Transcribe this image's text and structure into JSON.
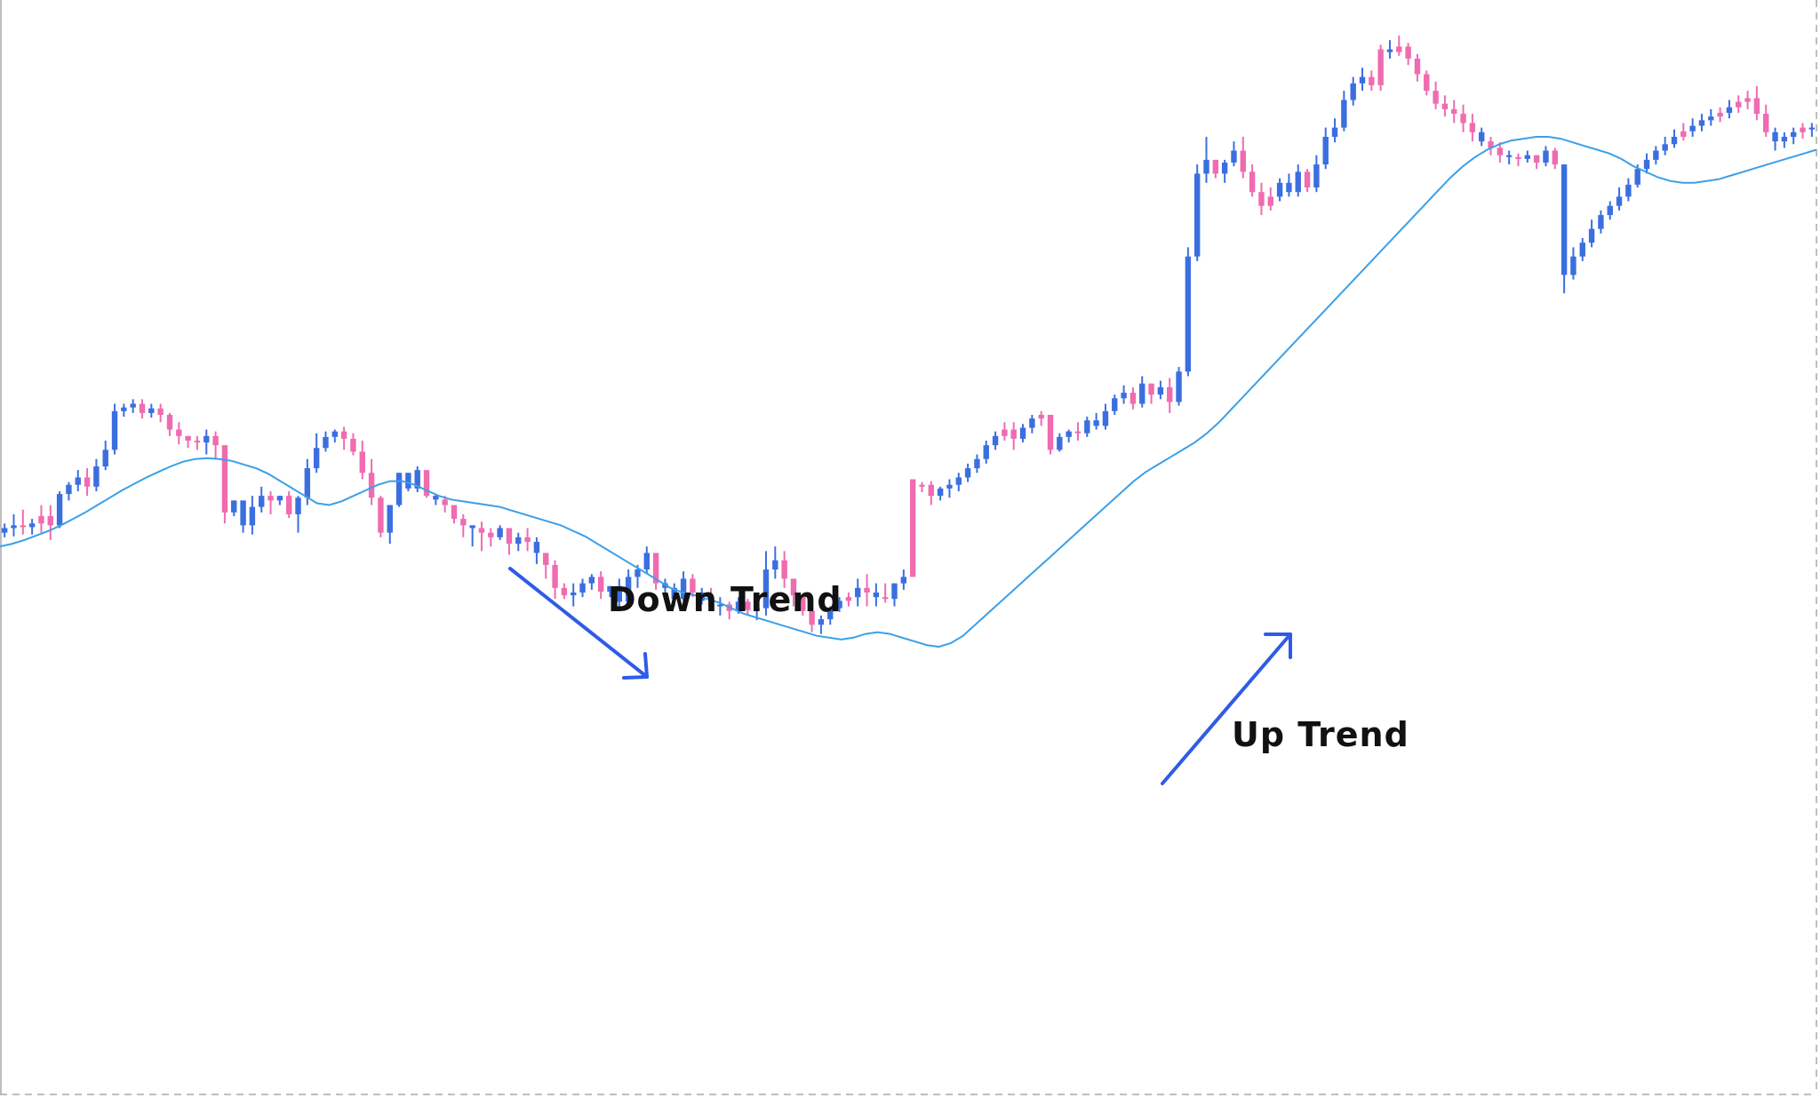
{
  "chart_data": {
    "type": "candlestick",
    "title": "",
    "xlabel": "",
    "ylabel": "",
    "grid": false,
    "colors": {
      "bull": "#3b6fe0",
      "bear": "#f06bb0",
      "moving_average": "#3aa0e8",
      "annotation_arrow": "#2f5be6",
      "border": "#a8a8a8"
    },
    "price_range": [
      0,
      1100
    ],
    "candles": [
      [
        560,
        570,
        565,
        555,
        0
      ],
      [
        565,
        580,
        568,
        556,
        0
      ],
      [
        568,
        585,
        566,
        558,
        1
      ],
      [
        566,
        575,
        570,
        558,
        0
      ],
      [
        570,
        590,
        578,
        560,
        1
      ],
      [
        578,
        590,
        568,
        552,
        1
      ],
      [
        568,
        605,
        602,
        565,
        0
      ],
      [
        602,
        615,
        612,
        595,
        0
      ],
      [
        612,
        628,
        620,
        605,
        0
      ],
      [
        620,
        630,
        610,
        600,
        1
      ],
      [
        610,
        640,
        632,
        605,
        0
      ],
      [
        632,
        660,
        650,
        628,
        0
      ],
      [
        650,
        700,
        692,
        645,
        0
      ],
      [
        692,
        700,
        696,
        686,
        0
      ],
      [
        696,
        705,
        700,
        690,
        0
      ],
      [
        700,
        705,
        690,
        684,
        1
      ],
      [
        690,
        700,
        695,
        685,
        0
      ],
      [
        695,
        700,
        688,
        680,
        1
      ],
      [
        688,
        690,
        672,
        665,
        1
      ],
      [
        672,
        680,
        665,
        656,
        1
      ],
      [
        665,
        665,
        660,
        652,
        1
      ],
      [
        660,
        665,
        658,
        650,
        1
      ],
      [
        658,
        672,
        665,
        645,
        0
      ],
      [
        665,
        670,
        655,
        640,
        1
      ],
      [
        655,
        645,
        582,
        570,
        1
      ],
      [
        582,
        590,
        595,
        578,
        0
      ],
      [
        595,
        580,
        568,
        560,
        0
      ],
      [
        568,
        600,
        588,
        558,
        0
      ],
      [
        588,
        610,
        600,
        582,
        0
      ],
      [
        600,
        605,
        595,
        580,
        1
      ],
      [
        595,
        600,
        600,
        590,
        0
      ],
      [
        600,
        605,
        580,
        576,
        1
      ],
      [
        580,
        600,
        598,
        560,
        0
      ],
      [
        598,
        640,
        630,
        590,
        0
      ],
      [
        630,
        668,
        652,
        625,
        0
      ],
      [
        652,
        670,
        664,
        648,
        0
      ],
      [
        664,
        672,
        670,
        658,
        0
      ],
      [
        670,
        675,
        662,
        650,
        1
      ],
      [
        662,
        668,
        648,
        644,
        1
      ],
      [
        648,
        660,
        625,
        618,
        1
      ],
      [
        625,
        640,
        598,
        590,
        1
      ],
      [
        598,
        600,
        560,
        555,
        1
      ],
      [
        560,
        585,
        590,
        548,
        0
      ],
      [
        590,
        600,
        625,
        588,
        0
      ],
      [
        625,
        622,
        608,
        605,
        0
      ],
      [
        608,
        632,
        628,
        604,
        0
      ],
      [
        628,
        625,
        600,
        598,
        1
      ],
      [
        600,
        602,
        596,
        590,
        0
      ],
      [
        596,
        600,
        590,
        582,
        1
      ],
      [
        590,
        578,
        575,
        570,
        1
      ],
      [
        575,
        580,
        568,
        555,
        1
      ],
      [
        568,
        560,
        565,
        545,
        0
      ],
      [
        565,
        572,
        560,
        540,
        1
      ],
      [
        560,
        565,
        555,
        545,
        1
      ],
      [
        555,
        568,
        565,
        552,
        0
      ],
      [
        565,
        560,
        548,
        536,
        1
      ],
      [
        548,
        560,
        555,
        540,
        0
      ],
      [
        555,
        565,
        550,
        540,
        1
      ],
      [
        550,
        555,
        538,
        526,
        0
      ],
      [
        538,
        520,
        525,
        510,
        1
      ],
      [
        525,
        530,
        500,
        488,
        1
      ],
      [
        500,
        505,
        492,
        488,
        1
      ],
      [
        492,
        505,
        495,
        480,
        0
      ],
      [
        495,
        510,
        505,
        490,
        0
      ],
      [
        505,
        515,
        512,
        498,
        0
      ],
      [
        512,
        518,
        496,
        488,
        1
      ],
      [
        496,
        500,
        502,
        490,
        0
      ],
      [
        502,
        510,
        485,
        480,
        0
      ],
      [
        485,
        520,
        512,
        490,
        0
      ],
      [
        512,
        525,
        520,
        500,
        0
      ],
      [
        520,
        545,
        538,
        516,
        0
      ],
      [
        538,
        525,
        505,
        498,
        1
      ],
      [
        505,
        510,
        500,
        492,
        0
      ],
      [
        500,
        505,
        488,
        480,
        0
      ],
      [
        488,
        518,
        510,
        486,
        0
      ],
      [
        510,
        515,
        495,
        490,
        1
      ],
      [
        495,
        500,
        486,
        482,
        0
      ],
      [
        486,
        500,
        480,
        476,
        1
      ],
      [
        480,
        490,
        482,
        470,
        0
      ],
      [
        482,
        485,
        475,
        466,
        1
      ],
      [
        475,
        490,
        485,
        472,
        0
      ],
      [
        485,
        488,
        476,
        470,
        1
      ],
      [
        476,
        486,
        478,
        465,
        0
      ],
      [
        478,
        540,
        520,
        470,
        0
      ],
      [
        520,
        545,
        530,
        510,
        0
      ],
      [
        530,
        540,
        510,
        500,
        1
      ],
      [
        510,
        500,
        492,
        480,
        1
      ],
      [
        492,
        485,
        475,
        470,
        1
      ],
      [
        475,
        478,
        460,
        452,
        1
      ],
      [
        460,
        470,
        466,
        450,
        0
      ],
      [
        466,
        480,
        478,
        460,
        0
      ],
      [
        478,
        490,
        486,
        474,
        0
      ],
      [
        486,
        495,
        490,
        480,
        1
      ],
      [
        490,
        510,
        500,
        480,
        0
      ],
      [
        500,
        515,
        495,
        480,
        1
      ],
      [
        495,
        505,
        490,
        480,
        0
      ],
      [
        490,
        505,
        488,
        484,
        1
      ],
      [
        488,
        505,
        505,
        480,
        0
      ],
      [
        505,
        520,
        512,
        498,
        0
      ],
      [
        512,
        610,
        618,
        600,
        1
      ],
      [
        610,
        615,
        612,
        604,
        1
      ],
      [
        612,
        616,
        600,
        590,
        1
      ],
      [
        600,
        610,
        608,
        595,
        0
      ],
      [
        608,
        618,
        612,
        598,
        0
      ],
      [
        612,
        625,
        620,
        605,
        0
      ],
      [
        620,
        635,
        630,
        615,
        0
      ],
      [
        630,
        645,
        640,
        625,
        0
      ],
      [
        640,
        660,
        655,
        635,
        0
      ],
      [
        655,
        670,
        665,
        650,
        0
      ],
      [
        665,
        680,
        672,
        660,
        1
      ],
      [
        672,
        680,
        662,
        650,
        1
      ],
      [
        662,
        678,
        674,
        658,
        0
      ],
      [
        674,
        688,
        684,
        668,
        0
      ],
      [
        684,
        692,
        688,
        676,
        1
      ],
      [
        688,
        680,
        650,
        645,
        1
      ],
      [
        650,
        668,
        664,
        648,
        0
      ],
      [
        664,
        672,
        670,
        658,
        0
      ],
      [
        670,
        680,
        668,
        660,
        1
      ],
      [
        668,
        686,
        682,
        664,
        0
      ],
      [
        682,
        690,
        676,
        672,
        0
      ],
      [
        676,
        700,
        692,
        672,
        0
      ],
      [
        692,
        710,
        706,
        688,
        0
      ],
      [
        706,
        720,
        712,
        700,
        0
      ],
      [
        712,
        718,
        700,
        694,
        1
      ],
      [
        700,
        730,
        722,
        696,
        0
      ],
      [
        722,
        720,
        710,
        700,
        1
      ],
      [
        710,
        725,
        718,
        705,
        0
      ],
      [
        718,
        728,
        702,
        690,
        1
      ],
      [
        702,
        740,
        735,
        698,
        0
      ],
      [
        735,
        870,
        860,
        730,
        0
      ],
      [
        860,
        960,
        950,
        855,
        0
      ],
      [
        950,
        990,
        965,
        940,
        0
      ],
      [
        965,
        960,
        950,
        945,
        1
      ],
      [
        950,
        965,
        962,
        940,
        0
      ],
      [
        962,
        985,
        975,
        958,
        0
      ],
      [
        975,
        990,
        952,
        945,
        1
      ],
      [
        952,
        960,
        930,
        925,
        1
      ],
      [
        930,
        940,
        915,
        905,
        1
      ],
      [
        915,
        935,
        925,
        910,
        1
      ],
      [
        925,
        945,
        940,
        920,
        0
      ],
      [
        940,
        950,
        930,
        925,
        0
      ],
      [
        930,
        960,
        952,
        925,
        0
      ],
      [
        952,
        955,
        935,
        930,
        1
      ],
      [
        935,
        970,
        960,
        930,
        0
      ],
      [
        960,
        1000,
        990,
        955,
        0
      ],
      [
        990,
        1010,
        1000,
        984,
        0
      ],
      [
        1000,
        1040,
        1030,
        996,
        0
      ],
      [
        1030,
        1055,
        1048,
        1024,
        0
      ],
      [
        1048,
        1065,
        1055,
        1040,
        0
      ],
      [
        1055,
        1062,
        1046,
        1040,
        1
      ],
      [
        1046,
        1090,
        1085,
        1040,
        1
      ],
      [
        1085,
        1095,
        1082,
        1075,
        0
      ],
      [
        1082,
        1100,
        1088,
        1078,
        1
      ],
      [
        1088,
        1092,
        1075,
        1068,
        1
      ],
      [
        1075,
        1080,
        1058,
        1050,
        1
      ],
      [
        1058,
        1062,
        1040,
        1035,
        1
      ],
      [
        1040,
        1050,
        1026,
        1020,
        1
      ],
      [
        1026,
        1035,
        1020,
        1012,
        1
      ],
      [
        1020,
        1030,
        1015,
        1005,
        1
      ],
      [
        1015,
        1025,
        1005,
        995,
        1
      ],
      [
        1005,
        1015,
        995,
        985,
        1
      ],
      [
        995,
        1000,
        985,
        980,
        0
      ],
      [
        985,
        990,
        978,
        970,
        1
      ],
      [
        978,
        984,
        970,
        962,
        1
      ],
      [
        970,
        975,
        968,
        960,
        0
      ],
      [
        968,
        972,
        966,
        958,
        1
      ],
      [
        966,
        975,
        970,
        962,
        0
      ],
      [
        970,
        965,
        962,
        955,
        1
      ],
      [
        962,
        980,
        975,
        958,
        0
      ],
      [
        975,
        978,
        960,
        955,
        1
      ],
      [
        960,
        860,
        840,
        820,
        0
      ],
      [
        840,
        870,
        860,
        835,
        0
      ],
      [
        860,
        880,
        875,
        855,
        0
      ],
      [
        875,
        900,
        890,
        870,
        0
      ],
      [
        890,
        910,
        905,
        885,
        0
      ],
      [
        905,
        920,
        915,
        900,
        0
      ],
      [
        915,
        935,
        925,
        910,
        0
      ],
      [
        925,
        945,
        938,
        920,
        0
      ],
      [
        938,
        960,
        955,
        935,
        0
      ],
      [
        955,
        972,
        965,
        950,
        0
      ],
      [
        965,
        980,
        975,
        960,
        0
      ],
      [
        975,
        990,
        982,
        970,
        0
      ],
      [
        982,
        998,
        990,
        978,
        0
      ],
      [
        990,
        1005,
        996,
        986,
        1
      ],
      [
        996,
        1010,
        1002,
        990,
        0
      ],
      [
        1002,
        1015,
        1008,
        996,
        0
      ],
      [
        1008,
        1020,
        1012,
        1002,
        0
      ],
      [
        1012,
        1022,
        1016,
        1006,
        1
      ],
      [
        1016,
        1030,
        1022,
        1010,
        0
      ],
      [
        1022,
        1035,
        1028,
        1016,
        1
      ],
      [
        1028,
        1040,
        1032,
        1020,
        1
      ],
      [
        1032,
        1045,
        1015,
        1008,
        1
      ],
      [
        1015,
        1025,
        995,
        990,
        1
      ],
      [
        995,
        1000,
        985,
        975,
        0
      ],
      [
        985,
        995,
        990,
        978,
        0
      ],
      [
        990,
        1000,
        995,
        982,
        0
      ],
      [
        995,
        1005,
        1000,
        988,
        1
      ],
      [
        1000,
        1005,
        998,
        990,
        0
      ]
    ],
    "moving_average": [
      545,
      548,
      552,
      557,
      562,
      568,
      575,
      582,
      590,
      598,
      606,
      613,
      620,
      626,
      632,
      637,
      640,
      641,
      640,
      638,
      634,
      630,
      624,
      616,
      608,
      600,
      592,
      590,
      594,
      600,
      606,
      612,
      616,
      616,
      612,
      606,
      600,
      596,
      594,
      592,
      590,
      588,
      584,
      580,
      576,
      572,
      568,
      562,
      556,
      548,
      540,
      532,
      524,
      516,
      508,
      500,
      495,
      492,
      488,
      484,
      478,
      472,
      468,
      464,
      460,
      456,
      452,
      448,
      446,
      444,
      446,
      450,
      452,
      450,
      446,
      442,
      438,
      436,
      440,
      448,
      460,
      472,
      484,
      496,
      508,
      520,
      532,
      544,
      556,
      568,
      580,
      592,
      604,
      616,
      626,
      634,
      642,
      650,
      658,
      668,
      680,
      694,
      708,
      722,
      736,
      750,
      764,
      778,
      792,
      806,
      820,
      834,
      848,
      862,
      876,
      890,
      904,
      918,
      932,
      946,
      958,
      968,
      976,
      982,
      986,
      988,
      990,
      990,
      988,
      984,
      980,
      976,
      972,
      966,
      958,
      952,
      946,
      942,
      940,
      940,
      942,
      944,
      948,
      952,
      956,
      960,
      964,
      968,
      972,
      976
    ],
    "annotations": [
      {
        "text": "Down Trend",
        "direction": "down"
      },
      {
        "text": "Up Trend",
        "direction": "up"
      }
    ]
  }
}
